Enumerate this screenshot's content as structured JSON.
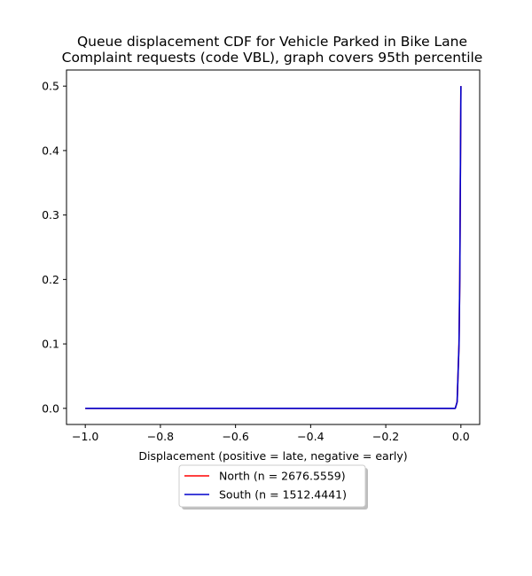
{
  "chart_data": {
    "type": "line",
    "title_lines": [
      "Queue displacement CDF for Vehicle Parked in Bike Lane",
      "Complaint  requests (code VBL), graph covers 95th percentile"
    ],
    "xlabel": "Displacement (positive = late, negative = early)",
    "ylabel": "",
    "xlim": [
      -1.05,
      0.05
    ],
    "ylim": [
      -0.025,
      0.525
    ],
    "xticks": [
      -1.0,
      -0.8,
      -0.6,
      -0.4,
      -0.2,
      0.0
    ],
    "xtick_labels": [
      "−1.0",
      "−0.8",
      "−0.6",
      "−0.4",
      "−0.2",
      "0.0"
    ],
    "yticks": [
      0.0,
      0.1,
      0.2,
      0.3,
      0.4,
      0.5
    ],
    "ytick_labels": [
      "0.0",
      "0.1",
      "0.2",
      "0.3",
      "0.4",
      "0.5"
    ],
    "grid": false,
    "legend_position": "below plot, centered",
    "series": [
      {
        "name": "North (n = 2676.5559)",
        "color": "#ff0000",
        "x": [
          -1.0,
          -0.015,
          -0.01,
          -0.005,
          -0.003,
          0.0
        ],
        "y": [
          0.0,
          0.0,
          0.01,
          0.1,
          0.2,
          0.5
        ]
      },
      {
        "name": "South (n = 1512.4441)",
        "color": "#0000cc",
        "x": [
          -1.0,
          -0.015,
          -0.01,
          -0.005,
          -0.003,
          0.0
        ],
        "y": [
          0.0,
          0.0,
          0.01,
          0.1,
          0.2,
          0.5
        ]
      }
    ]
  }
}
